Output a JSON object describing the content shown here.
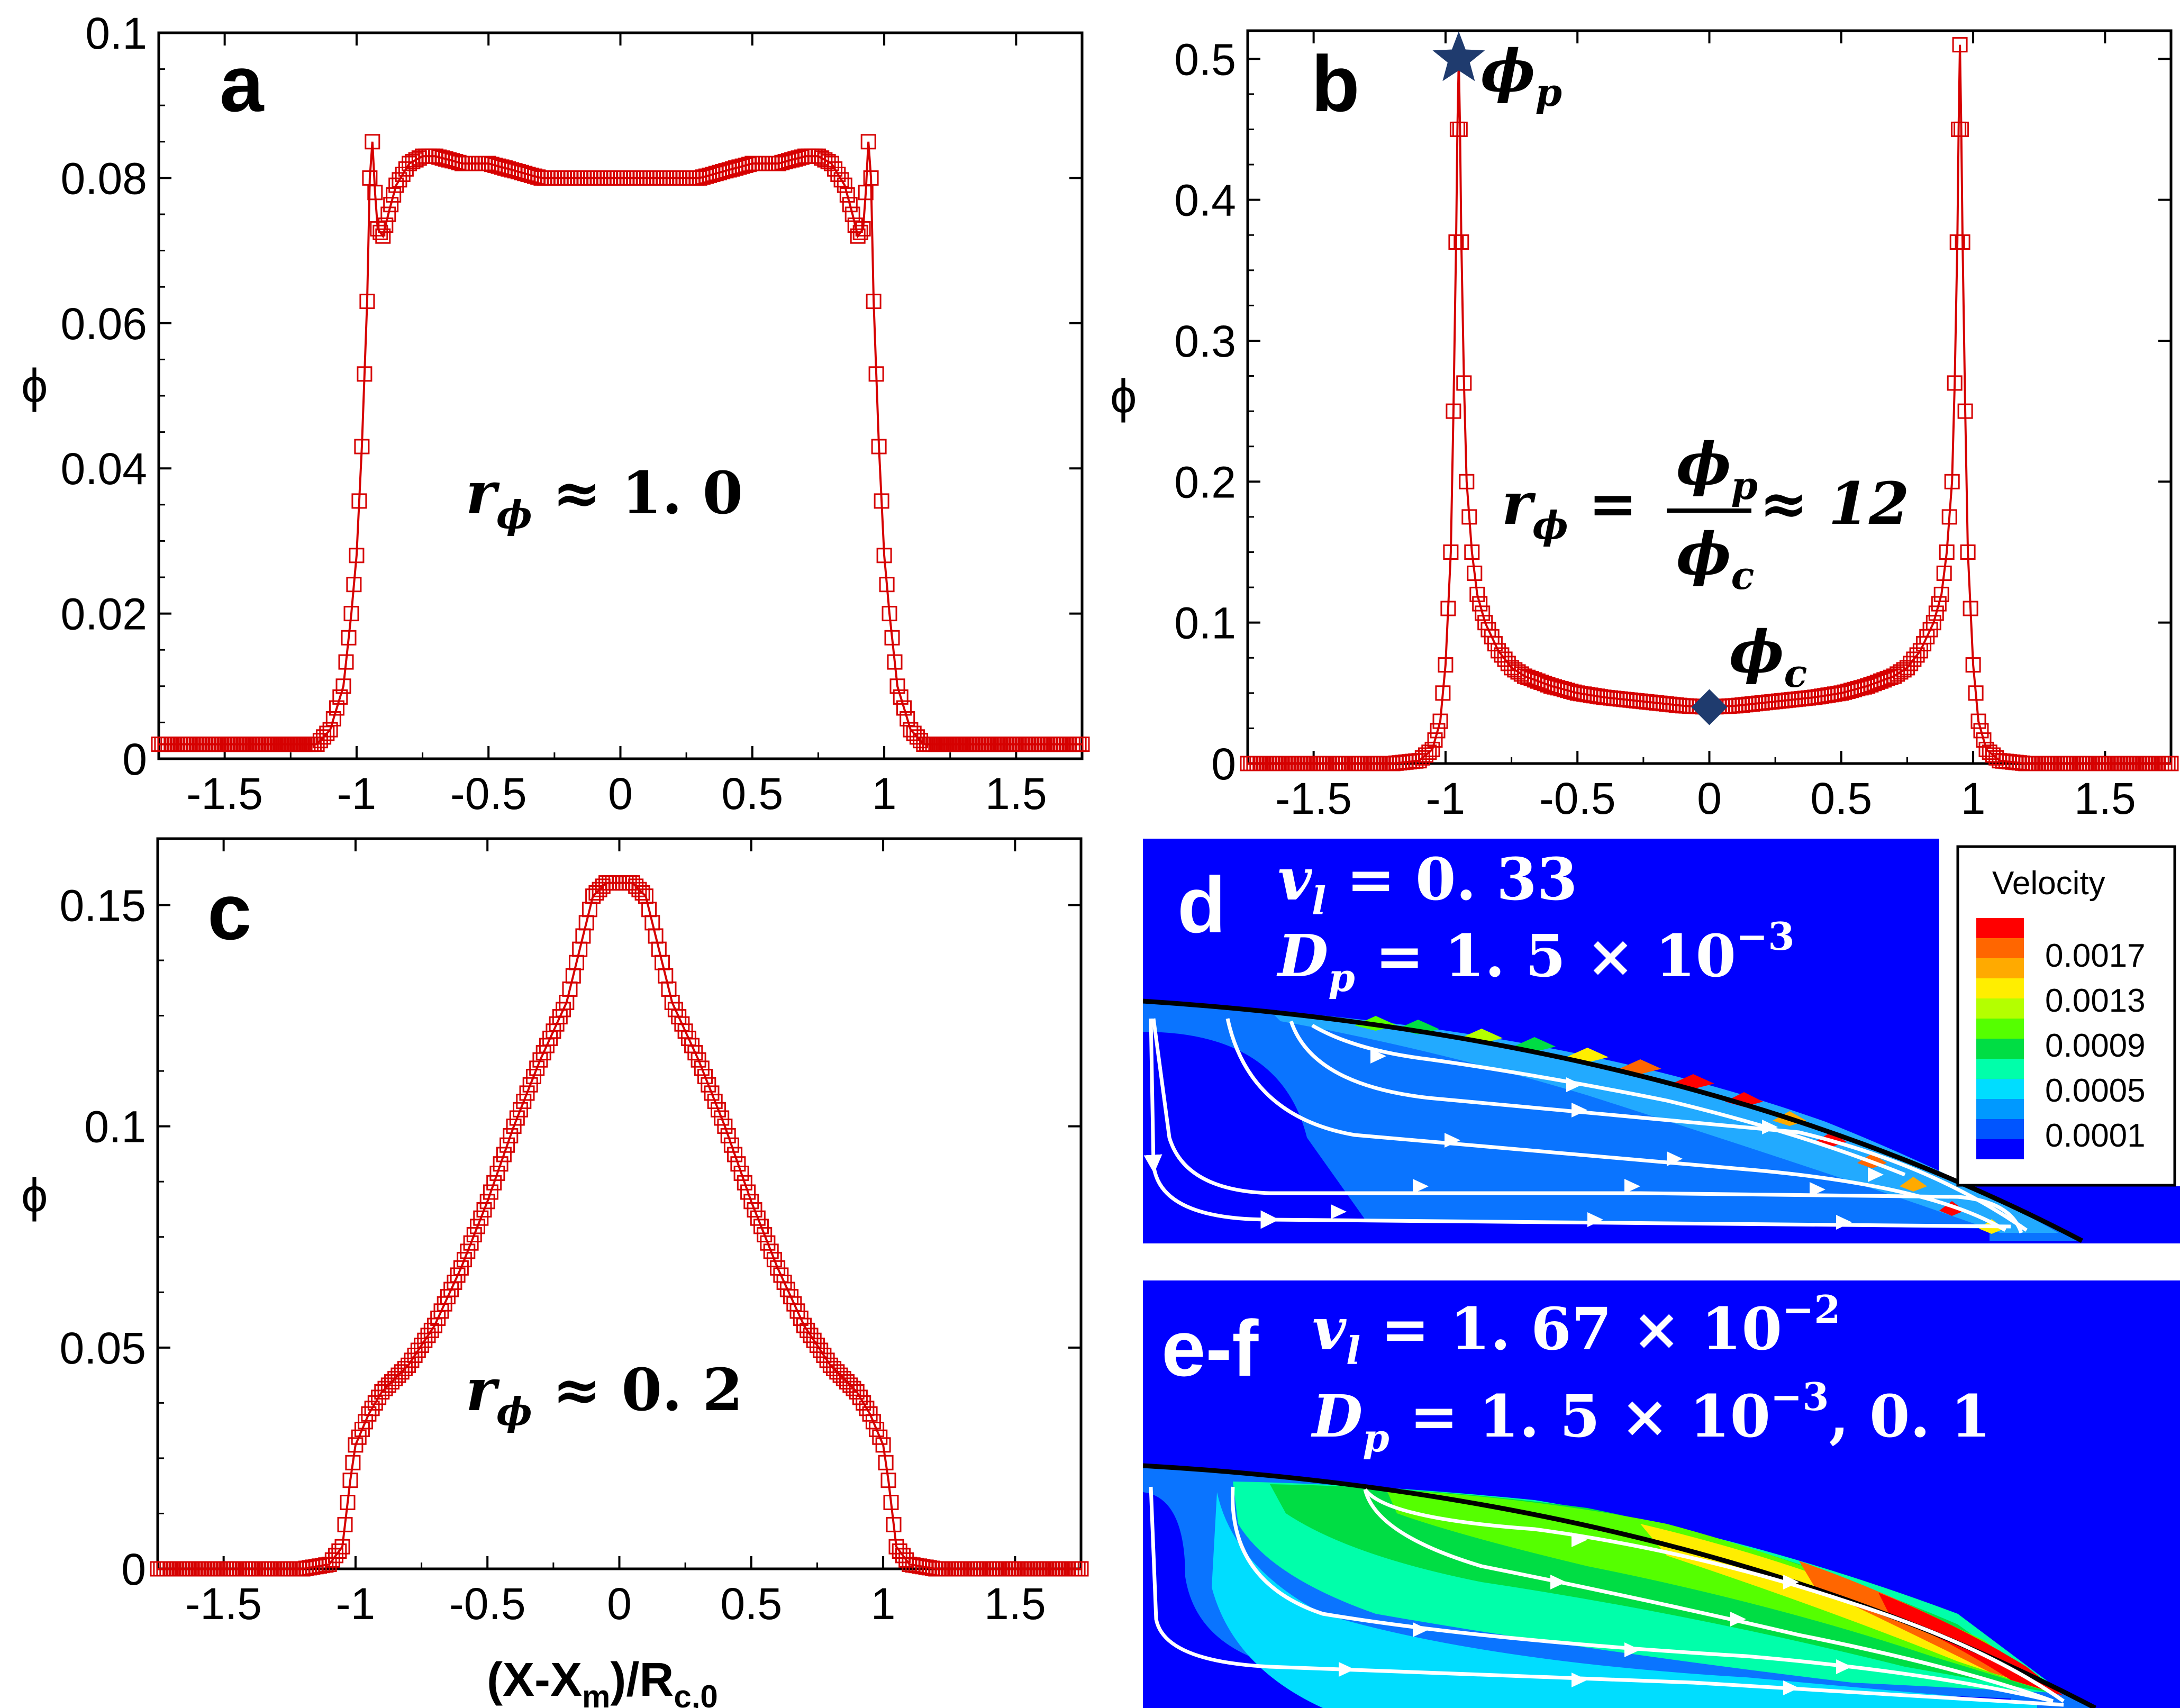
{
  "colors": {
    "series": "#d60000",
    "marker_dark": "#1f3b6e",
    "field_bg": "#0000ff",
    "streamline": "#ffffff"
  },
  "chart_data": [
    {
      "panel": "a",
      "type": "line",
      "ylabel": "ϕ",
      "xlim": [
        -1.75,
        1.75
      ],
      "ylim": [
        0,
        0.1
      ],
      "xticks": [
        "-1.5",
        "-1",
        "-0.5",
        "0",
        "0.5",
        "1",
        "1.5"
      ],
      "yticks": [
        "0",
        "0.02",
        "0.04",
        "0.06",
        "0.08",
        "0.1"
      ],
      "annotation": {
        "sym": "r",
        "sub": "ϕ",
        "rest": " ≈ 1. 0"
      },
      "series": [
        {
          "name": "ϕ",
          "x": [
            -1.75,
            -1.5,
            -1.3,
            -1.15,
            -1.1,
            -1.05,
            -1.02,
            -1.0,
            -0.98,
            -0.96,
            -0.95,
            -0.94,
            -0.93,
            -0.92,
            -0.9,
            -0.88,
            -0.85,
            -0.8,
            -0.75,
            -0.7,
            -0.6,
            -0.5,
            -0.4,
            -0.3,
            -0.2,
            -0.1,
            0,
            0.1,
            0.2,
            0.3,
            0.4,
            0.5,
            0.6,
            0.7,
            0.75,
            0.8,
            0.85,
            0.88,
            0.9,
            0.92,
            0.93,
            0.94,
            0.95,
            0.96,
            0.98,
            1.0,
            1.02,
            1.05,
            1.1,
            1.15,
            1.3,
            1.5,
            1.75
          ],
          "values": [
            0.002,
            0.002,
            0.002,
            0.002,
            0.004,
            0.01,
            0.02,
            0.028,
            0.043,
            0.063,
            0.08,
            0.085,
            0.078,
            0.073,
            0.072,
            0.075,
            0.079,
            0.082,
            0.083,
            0.083,
            0.082,
            0.082,
            0.081,
            0.08,
            0.08,
            0.08,
            0.08,
            0.08,
            0.08,
            0.08,
            0.081,
            0.082,
            0.082,
            0.083,
            0.083,
            0.082,
            0.079,
            0.075,
            0.072,
            0.073,
            0.078,
            0.085,
            0.08,
            0.063,
            0.043,
            0.028,
            0.02,
            0.01,
            0.004,
            0.002,
            0.002,
            0.002,
            0.002
          ]
        }
      ]
    },
    {
      "panel": "b",
      "type": "line",
      "ylabel": "ϕ",
      "xlim": [
        -1.75,
        1.75
      ],
      "ylim": [
        0,
        0.52
      ],
      "xticks": [
        "-1.5",
        "-1",
        "-0.5",
        "0",
        "0.5",
        "1",
        "1.5"
      ],
      "yticks": [
        "0",
        "0.1",
        "0.2",
        "0.3",
        "0.4",
        "0.5"
      ],
      "annotation": {
        "sym": "r",
        "sub": "ϕ",
        "eq": " = ",
        "num": "ϕ",
        "num_sub": "p",
        "den": "ϕ",
        "den_sub": "c",
        "rest": " ≈ 12"
      },
      "marks": [
        {
          "label": "ϕ",
          "sub": "p",
          "shape": "star",
          "x": -0.95,
          "y": 0.5
        },
        {
          "label": "ϕ",
          "sub": "c",
          "shape": "diamond",
          "x": 0.0,
          "y": 0.04
        }
      ],
      "series": [
        {
          "name": "ϕ",
          "x": [
            -1.75,
            -1.5,
            -1.2,
            -1.1,
            -1.05,
            -1.02,
            -1.0,
            -0.98,
            -0.97,
            -0.96,
            -0.955,
            -0.95,
            -0.945,
            -0.94,
            -0.93,
            -0.92,
            -0.9,
            -0.88,
            -0.85,
            -0.8,
            -0.75,
            -0.7,
            -0.6,
            -0.5,
            -0.4,
            -0.3,
            -0.2,
            -0.1,
            0,
            0.1,
            0.2,
            0.3,
            0.4,
            0.5,
            0.6,
            0.7,
            0.75,
            0.8,
            0.85,
            0.88,
            0.9,
            0.92,
            0.93,
            0.94,
            0.945,
            0.95,
            0.955,
            0.96,
            0.97,
            0.98,
            1.0,
            1.02,
            1.05,
            1.1,
            1.2,
            1.5,
            1.75
          ],
          "values": [
            0,
            0,
            0,
            0.002,
            0.01,
            0.03,
            0.07,
            0.15,
            0.25,
            0.37,
            0.45,
            0.5,
            0.45,
            0.37,
            0.27,
            0.2,
            0.15,
            0.12,
            0.1,
            0.08,
            0.068,
            0.062,
            0.055,
            0.05,
            0.047,
            0.045,
            0.043,
            0.041,
            0.04,
            0.041,
            0.043,
            0.045,
            0.047,
            0.05,
            0.055,
            0.062,
            0.068,
            0.08,
            0.1,
            0.12,
            0.15,
            0.2,
            0.27,
            0.37,
            0.45,
            0.51,
            0.45,
            0.37,
            0.25,
            0.15,
            0.07,
            0.03,
            0.01,
            0.002,
            0,
            0,
            0
          ]
        }
      ]
    },
    {
      "panel": "c",
      "type": "line",
      "ylabel": "ϕ",
      "xlabel": "(X-X_m)/R_c,0",
      "xlabel_parts": {
        "main": "(X-X",
        "sub1": "m",
        "mid": ")/R",
        "sub2": "c,0"
      },
      "xlim": [
        -1.75,
        1.75
      ],
      "ylim": [
        0,
        0.165
      ],
      "xticks": [
        "-1.5",
        "-1",
        "-0.5",
        "0",
        "0.5",
        "1",
        "1.5"
      ],
      "yticks": [
        "0",
        "0.05",
        "0.1",
        "0.15"
      ],
      "annotation": {
        "sym": "r",
        "sub": "ϕ",
        "rest": " ≈ 0. 2"
      },
      "series": [
        {
          "name": "ϕ",
          "x": [
            -1.75,
            -1.5,
            -1.2,
            -1.1,
            -1.05,
            -1.02,
            -1.0,
            -0.95,
            -0.9,
            -0.8,
            -0.7,
            -0.6,
            -0.5,
            -0.4,
            -0.3,
            -0.2,
            -0.15,
            -0.1,
            -0.05,
            0,
            0.05,
            0.1,
            0.15,
            0.2,
            0.3,
            0.4,
            0.5,
            0.6,
            0.7,
            0.8,
            0.9,
            0.95,
            1.0,
            1.02,
            1.05,
            1.1,
            1.2,
            1.5,
            1.75
          ],
          "values": [
            0,
            0,
            0,
            0.001,
            0.005,
            0.02,
            0.028,
            0.035,
            0.04,
            0.046,
            0.055,
            0.068,
            0.083,
            0.1,
            0.115,
            0.128,
            0.14,
            0.152,
            0.155,
            0.155,
            0.155,
            0.152,
            0.14,
            0.128,
            0.115,
            0.1,
            0.083,
            0.068,
            0.055,
            0.046,
            0.04,
            0.035,
            0.028,
            0.02,
            0.005,
            0.001,
            0,
            0,
            0
          ]
        }
      ]
    }
  ],
  "panel_d": {
    "label": "d",
    "line1": {
      "sym": "v",
      "sub": "l",
      "rest": " = 0. 33"
    },
    "line2": {
      "sym": "D",
      "sub": "p",
      "rest": " = 1. 5 × 10",
      "sup": "−3"
    }
  },
  "panel_e": {
    "label": "e-f",
    "line1": {
      "sym": "v",
      "sub": "l",
      "rest": " = 1. 67 × 10",
      "sup": "−2"
    },
    "line2": {
      "sym": "D",
      "sub": "p",
      "rest": " = 1. 5 × 10",
      "sup": "−3",
      "tail": ", 0. 1"
    }
  },
  "legend": {
    "title": "Velocity",
    "labels": [
      "0.0017",
      "0.0013",
      "0.0009",
      "0.0005",
      "0.0001"
    ],
    "colors": [
      "#ff0000",
      "#ff6600",
      "#ffaa00",
      "#ffee00",
      "#b4ff00",
      "#55ff00",
      "#00dd44",
      "#00ffaa",
      "#00ddff",
      "#0099ff",
      "#0055ff",
      "#0000ff"
    ]
  }
}
